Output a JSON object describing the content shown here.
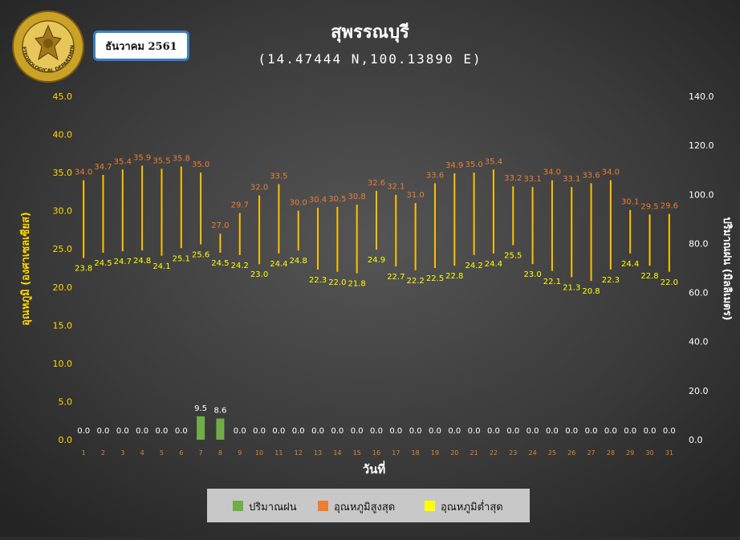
{
  "header": {
    "title": "สุพรรณบุรี",
    "coords": "(14.47444 N,100.13890 E)",
    "period": "ธันวาคม 2561",
    "logo_text": "METEOROLOGICAL DEPARTMENT"
  },
  "colors": {
    "rain": "#70ad47",
    "tmax": "#ed7d31",
    "tmin": "#ffff00",
    "line": "#ffc000",
    "left_axis": "#ffd700",
    "right_axis": "#ffffff",
    "tick_x": "#d98a2b"
  },
  "chart_data": {
    "type": "bar",
    "title": "สุพรรณบุรี",
    "subtitle": "(14.47444 N,100.13890 E)",
    "xlabel": "วันที่",
    "ylabel_left": "อุณหภูมิ (องศาเซลเซียส)",
    "ylabel_right": "ปริมาณฝน (มิลลิเมตร)",
    "ylim_left": [
      0,
      45
    ],
    "ylim_right": [
      0,
      140
    ],
    "yticks_left": [
      "0.0",
      "5.0",
      "10.0",
      "15.0",
      "20.0",
      "25.0",
      "30.0",
      "35.0",
      "40.0",
      "45.0"
    ],
    "yticks_right": [
      "0.0",
      "20.0",
      "40.0",
      "60.0",
      "80.0",
      "100.0",
      "120.0",
      "140.0"
    ],
    "grid": false,
    "legend_position": "bottom",
    "categories": [
      "1",
      "2",
      "3",
      "4",
      "5",
      "6",
      "7",
      "8",
      "9",
      "10",
      "11",
      "12",
      "13",
      "14",
      "15",
      "16",
      "17",
      "18",
      "19",
      "20",
      "21",
      "22",
      "23",
      "24",
      "25",
      "26",
      "27",
      "28",
      "29",
      "30",
      "31"
    ],
    "series": [
      {
        "name": "ปริมาณฝน",
        "type": "bar",
        "axis": "left",
        "values": [
          0,
          0,
          0,
          0,
          0,
          0,
          9.5,
          8.6,
          0,
          0,
          0,
          0,
          0,
          0,
          0,
          0,
          0,
          0,
          0,
          0,
          0,
          0,
          0,
          0,
          0,
          0,
          0,
          0,
          0,
          0,
          0
        ],
        "labels": [
          "0.0",
          "0.0",
          "0.0",
          "0.0",
          "0.0",
          "0.0",
          "9.5",
          "8.6",
          "0.0",
          "0.0",
          "0.0",
          "0.0",
          "0.0",
          "0.0",
          "0.0",
          "0.0",
          "0.0",
          "0.0",
          "0.0",
          "0.0",
          "0.0",
          "0.0",
          "0.0",
          "0.0",
          "0.0",
          "0.0",
          "0.0",
          "0.0",
          "0.0",
          "0.0",
          "0.0"
        ]
      },
      {
        "name": "อุณหภูมิสูงสุด",
        "type": "line-high",
        "axis": "left",
        "values": [
          34.0,
          34.7,
          35.4,
          35.9,
          35.5,
          35.8,
          35.0,
          27.0,
          29.7,
          32.0,
          33.5,
          30.0,
          30.4,
          30.5,
          30.8,
          32.6,
          32.1,
          31.0,
          33.6,
          34.9,
          35.0,
          35.4,
          33.2,
          33.1,
          34.0,
          33.1,
          33.6,
          34.0,
          30.1,
          29.5,
          29.6
        ],
        "labels": [
          "34.0",
          "34.7",
          "35.4",
          "35.9",
          "35.5",
          "35.8",
          "35.0",
          "27.0",
          "29.7",
          "32.0",
          "33.5",
          "30.0",
          "30.4",
          "30.5",
          "30.8",
          "32.6",
          "32.1",
          "31.0",
          "33.6",
          "34.9",
          "35.0",
          "35.4",
          "33.2",
          "33.1",
          "34.0",
          "33.1",
          "33.6",
          "34.0",
          "30.1",
          "29.5",
          "29.6"
        ]
      },
      {
        "name": "อุณหภูมิต่ำสุด",
        "type": "line-low",
        "axis": "left",
        "values": [
          23.8,
          24.5,
          24.7,
          24.8,
          24.1,
          25.1,
          25.6,
          24.5,
          24.2,
          23.0,
          24.4,
          24.8,
          22.3,
          22.0,
          21.8,
          24.9,
          22.7,
          22.2,
          22.5,
          22.8,
          24.2,
          24.4,
          25.5,
          23.0,
          22.1,
          21.3,
          20.8,
          22.3,
          24.4,
          22.8,
          22.0
        ],
        "labels": [
          "23.8",
          "24.5",
          "24.7",
          "24.8",
          "24.1",
          "25.1",
          "25.6",
          "24.5",
          "24.2",
          "23.0",
          "24.4",
          "24.8",
          "22.3",
          "22.0",
          "21.8",
          "24.9",
          "22.7",
          "22.2",
          "22.5",
          "22.8",
          "24.2",
          "24.4",
          "25.5",
          "23.0",
          "22.1",
          "21.3",
          "20.8",
          "22.3",
          "24.4",
          "22.8",
          "22.0"
        ]
      }
    ]
  }
}
